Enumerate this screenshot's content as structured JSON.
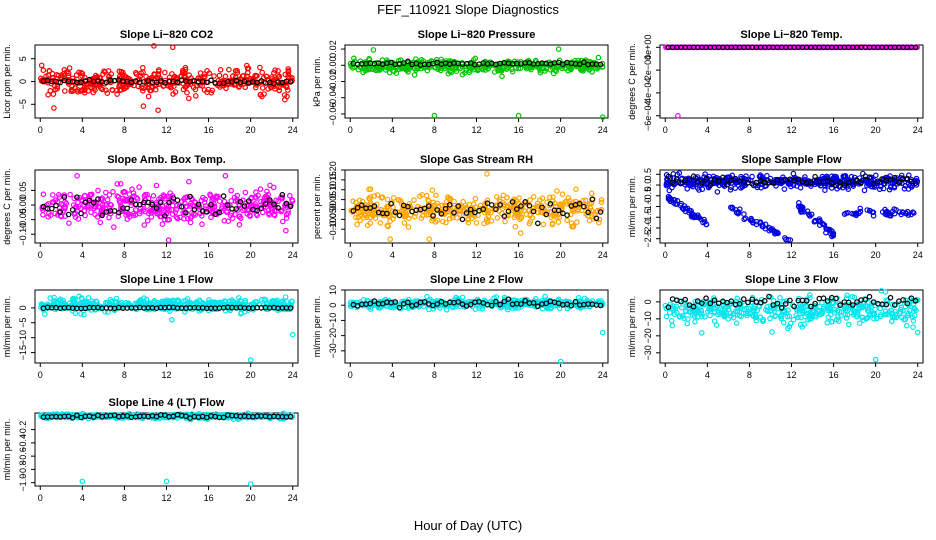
{
  "page": {
    "title": "FEF_110921  Slope Diagnostics",
    "xlabel": "Hour of Day (UTC)"
  },
  "chart_data": [
    {
      "type": "scatter",
      "title": "Slope Li−820 CO2",
      "ylabel": "Licor ppm per min.",
      "xlim": [
        -0.5,
        24.5
      ],
      "ylim": [
        -8,
        8
      ],
      "xticks": [
        0,
        4,
        8,
        12,
        16,
        20,
        24
      ],
      "xtick_labels": [
        "0",
        "4",
        "8",
        "12",
        "16",
        "20",
        "24"
      ],
      "yticks": [
        -5,
        0,
        5
      ],
      "ytick_labels": [
        "−5",
        "0",
        "5"
      ],
      "color": "#ff0000",
      "scatter_center": 0,
      "scatter_spread": 2.5,
      "black_center": 0,
      "black_spread": 0.35,
      "outliers": [
        [
          10.8,
          7.8
        ],
        [
          12.6,
          7.5
        ],
        [
          11.2,
          -6.3
        ],
        [
          1.3,
          -5.8
        ],
        [
          9.8,
          -5.4
        ],
        [
          23.6,
          2.2
        ]
      ]
    },
    {
      "type": "scatter",
      "title": "Slope Li−820 Pressure",
      "ylabel": "kPa per min.",
      "xlim": [
        -0.5,
        24.5
      ],
      "ylim": [
        -0.065,
        0.025
      ],
      "xticks": [
        0,
        4,
        8,
        12,
        16,
        20,
        24
      ],
      "xtick_labels": [
        "0",
        "4",
        "8",
        "12",
        "16",
        "20",
        "24"
      ],
      "yticks": [
        -0.06,
        -0.04,
        -0.02,
        0.0,
        0.02
      ],
      "ytick_labels": [
        "−0.06",
        "−0.04",
        "−0.02",
        "0.00",
        "0.02"
      ],
      "color": "#00c400",
      "scatter_center": -0.001,
      "scatter_spread": 0.007,
      "black_center": 0.002,
      "black_spread": 0.002,
      "outliers": [
        [
          8,
          -0.062
        ],
        [
          16,
          -0.062
        ],
        [
          24,
          -0.064
        ],
        [
          19.8,
          0.02
        ],
        [
          2.2,
          0.019
        ]
      ]
    },
    {
      "type": "scatter",
      "title": "Slope Li−820 Temp.",
      "ylabel": "degrees C per min.",
      "xlim": [
        -0.5,
        24.5
      ],
      "ylim": [
        -0.00062,
        2e-05
      ],
      "xticks": [
        0,
        4,
        8,
        12,
        16,
        20,
        24
      ],
      "xtick_labels": [
        "0",
        "4",
        "8",
        "12",
        "16",
        "20",
        "24"
      ],
      "yticks": [
        -0.0006,
        -0.0004,
        -0.0002,
        0
      ],
      "ytick_labels": [
        "−6e−04",
        "−4e−04",
        "−2e−04",
        "0e+00"
      ],
      "color": "#ff00ff",
      "scatter_center": 0,
      "scatter_spread": 0,
      "black_center": 0,
      "black_spread": 0,
      "outliers": [
        [
          1.2,
          -0.0006
        ]
      ]
    },
    {
      "type": "scatter",
      "title": "Slope Amb. Box Temp.",
      "ylabel": "degrees C per min.",
      "xlim": [
        -0.5,
        24.5
      ],
      "ylim": [
        -0.13,
        0.12
      ],
      "xticks": [
        0,
        4,
        8,
        12,
        16,
        20,
        24
      ],
      "xtick_labels": [
        "0",
        "4",
        "8",
        "12",
        "16",
        "20",
        "24"
      ],
      "yticks": [
        -0.1,
        -0.05,
        0.0,
        0.05
      ],
      "ytick_labels": [
        "−0.10",
        "−0.05",
        "0.00",
        "0.05"
      ],
      "color": "#ff00ff",
      "scatter_center": 0,
      "scatter_spread": 0.05,
      "black_center": 0,
      "black_spread": 0.04,
      "outliers": [
        [
          12.2,
          -0.12
        ],
        [
          3.5,
          0.1
        ],
        [
          17.6,
          0.1
        ]
      ]
    },
    {
      "type": "scatter",
      "title": "Slope Gas Stream RH",
      "ylabel": "percent per min.",
      "xlim": [
        -0.5,
        24.5
      ],
      "ylim": [
        -0.17,
        0.2
      ],
      "xticks": [
        0,
        4,
        8,
        12,
        16,
        20,
        24
      ],
      "xtick_labels": [
        "0",
        "4",
        "8",
        "12",
        "16",
        "20",
        "24"
      ],
      "yticks": [
        -0.1,
        -0.05,
        0.0,
        0.05,
        0.1,
        0.15,
        0.2
      ],
      "ytick_labels": [
        "−0.10",
        "−0.05",
        "0.00",
        "0.05",
        "0.10",
        "0.15",
        "0.20"
      ],
      "color": "#ffa500",
      "scatter_center": 0,
      "scatter_spread": 0.07,
      "black_center": 0,
      "black_spread": 0.05,
      "outliers": [
        [
          3.8,
          -0.15
        ],
        [
          7.5,
          -0.15
        ],
        [
          16.2,
          -0.12
        ],
        [
          13,
          0.18
        ]
      ]
    },
    {
      "type": "scatter",
      "title": "Slope Sample Flow",
      "ylabel": "ml/min per min.",
      "xlim": [
        -0.5,
        24.5
      ],
      "ylim": [
        -2.7,
        0.7
      ],
      "xticks": [
        0,
        4,
        8,
        12,
        16,
        20,
        24
      ],
      "xtick_labels": [
        "0",
        "4",
        "8",
        "12",
        "16",
        "20",
        "24"
      ],
      "yticks": [
        -2.5,
        -2.0,
        -1.5,
        -1.0,
        -0.5,
        0.0,
        0.5
      ],
      "ytick_labels": [
        "−2.5",
        "−2.0",
        "−1.5",
        "−1.0",
        "−0.5",
        "0.0",
        "0.5"
      ],
      "color": "#0000e0",
      "scatter_center": 0.15,
      "scatter_spread": 0.3,
      "black_center": 0.2,
      "black_spread": 0.2,
      "outliers": [],
      "trails": [
        {
          "x": [
            0.3,
            4.0
          ],
          "y": [
            -0.6,
            -1.8
          ]
        },
        {
          "x": [
            6.0,
            12.0
          ],
          "y": [
            -1.0,
            -2.6
          ]
        },
        {
          "x": [
            12.5,
            16.0
          ],
          "y": [
            -0.9,
            -2.3
          ]
        },
        {
          "x": [
            17.0,
            24.0
          ],
          "y": [
            -1.3,
            -1.3
          ]
        }
      ]
    },
    {
      "type": "scatter",
      "title": "Slope Line 1 Flow",
      "ylabel": "ml/min per min.",
      "xlim": [
        -0.5,
        24.5
      ],
      "ylim": [
        -18.5,
        6
      ],
      "xticks": [
        0,
        4,
        8,
        12,
        16,
        20,
        24
      ],
      "xtick_labels": [
        "0",
        "4",
        "8",
        "12",
        "16",
        "20",
        "24"
      ],
      "yticks": [
        -15,
        -10,
        -5,
        0
      ],
      "ytick_labels": [
        "−15",
        "−10",
        "−5",
        "0"
      ],
      "color": "#00e5ee",
      "scatter_center": 1,
      "scatter_spread": 2,
      "black_center": 0,
      "black_spread": 0.2,
      "outliers": [
        [
          20,
          -17.5
        ],
        [
          24,
          -9
        ],
        [
          12.5,
          -4
        ]
      ]
    },
    {
      "type": "scatter",
      "title": "Slope Line 2 Flow",
      "ylabel": "ml/min per min.",
      "xlim": [
        -0.5,
        24.5
      ],
      "ylim": [
        -38,
        10
      ],
      "xticks": [
        0,
        4,
        8,
        12,
        16,
        20,
        24
      ],
      "xtick_labels": [
        "0",
        "4",
        "8",
        "12",
        "16",
        "20",
        "24"
      ],
      "yticks": [
        -30,
        -20,
        -10,
        0,
        10
      ],
      "ytick_labels": [
        "−30",
        "−20",
        "−10",
        "0",
        "10"
      ],
      "color": "#00e5ee",
      "scatter_center": 1,
      "scatter_spread": 3,
      "black_center": 1,
      "black_spread": 2,
      "outliers": [
        [
          20,
          -37
        ],
        [
          24,
          -18
        ]
      ]
    },
    {
      "type": "scatter",
      "title": "Slope Line 3 Flow",
      "ylabel": "ml/min per min.",
      "xlim": [
        -0.5,
        24.5
      ],
      "ylim": [
        -36,
        7
      ],
      "xticks": [
        0,
        4,
        8,
        12,
        16,
        20,
        24
      ],
      "xtick_labels": [
        "0",
        "4",
        "8",
        "12",
        "16",
        "20",
        "24"
      ],
      "yticks": [
        -30,
        -20,
        -10,
        0
      ],
      "ytick_labels": [
        "−30",
        "−20",
        "−10",
        "0"
      ],
      "color": "#00e5ee",
      "scatter_center": -5,
      "scatter_spread": 7,
      "black_center": 0,
      "black_spread": 3,
      "outliers": [
        [
          20,
          -34
        ],
        [
          24,
          -18
        ]
      ]
    },
    {
      "type": "scatter",
      "title": "Slope Line 4 (LT) Flow",
      "ylabel": "ml/min per min.",
      "xlim": [
        -0.5,
        24.5
      ],
      "ylim": [
        -1.05,
        0.05
      ],
      "xticks": [
        0,
        4,
        8,
        12,
        16,
        20,
        24
      ],
      "xtick_labels": [
        "0",
        "4",
        "8",
        "12",
        "16",
        "20",
        "24"
      ],
      "yticks": [
        -1.0,
        -0.8,
        -0.6,
        -0.4,
        -0.2
      ],
      "ytick_labels": [
        "−1.0",
        "−0.8",
        "−0.6",
        "−0.4",
        "−0.2"
      ],
      "color": "#00e5ee",
      "scatter_center": 0,
      "scatter_spread": 0.03,
      "black_center": 0,
      "black_spread": 0.02,
      "outliers": [
        [
          4,
          -0.98
        ],
        [
          12,
          -0.98
        ],
        [
          20,
          -1.02
        ]
      ]
    }
  ]
}
